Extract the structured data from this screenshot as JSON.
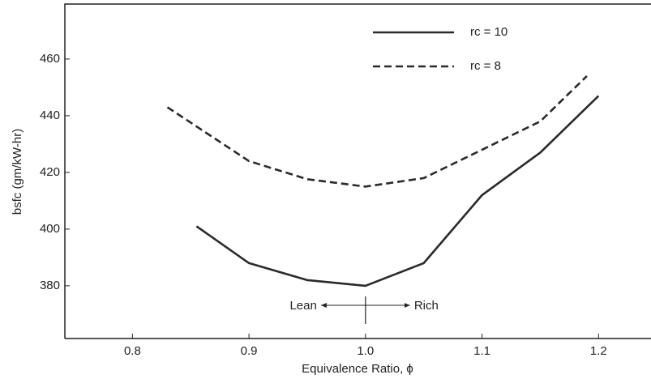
{
  "chart_data": {
    "type": "line",
    "xlabel": "Equivalence Ratio, ϕ",
    "ylabel": "bsfc (gm/kW-hr)",
    "xlim": [
      0.742,
      1.245
    ],
    "ylim": [
      361.4,
      479.4
    ],
    "xticks": [
      0.8,
      0.9,
      {
        "value": 1,
        "label": "1.0"
      },
      1.1,
      1.2
    ],
    "yticks": [
      380,
      400,
      420,
      440,
      460
    ],
    "series": [
      {
        "name": "rc = 10",
        "color": "#2a2a2a",
        "dash": false,
        "x": [
          0.855,
          0.9,
          0.95,
          1.0,
          1.05,
          1.1,
          1.15,
          1.2
        ],
        "values": [
          401,
          388,
          382,
          380,
          388,
          412,
          427,
          447
        ]
      },
      {
        "name": "rc = 8",
        "color": "#2a2a2a",
        "dash": true,
        "x": [
          0.83,
          0.9,
          0.95,
          1.0,
          1.05,
          1.1,
          1.15,
          1.19
        ],
        "values": [
          443,
          424,
          417.6,
          415,
          418,
          428,
          438,
          454
        ]
      }
    ],
    "annotations": [
      "Lean",
      "Rich"
    ],
    "legend": "upper right"
  }
}
